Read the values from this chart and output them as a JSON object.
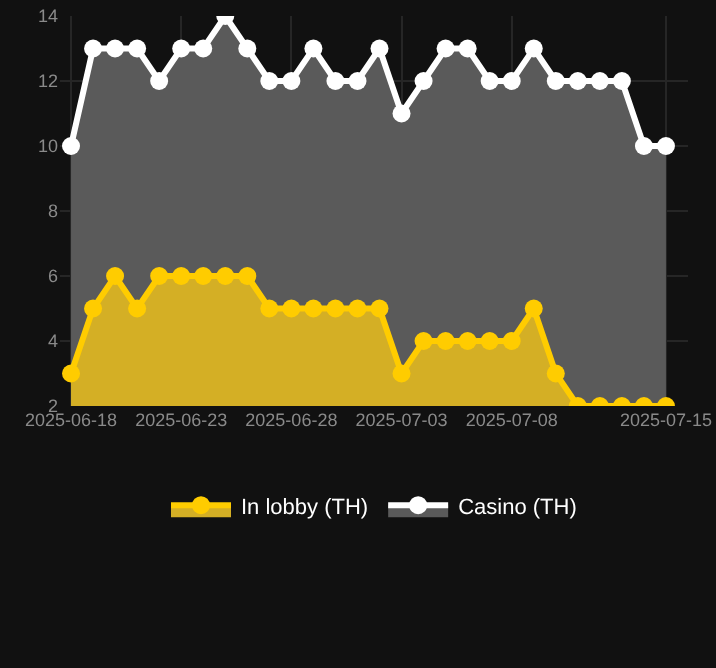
{
  "chart_data": {
    "type": "area",
    "x": [
      "2025-06-18",
      "2025-06-19",
      "2025-06-20",
      "2025-06-21",
      "2025-06-22",
      "2025-06-23",
      "2025-06-24",
      "2025-06-25",
      "2025-06-26",
      "2025-06-27",
      "2025-06-28",
      "2025-06-29",
      "2025-06-30",
      "2025-07-01",
      "2025-07-02",
      "2025-07-03",
      "2025-07-04",
      "2025-07-05",
      "2025-07-06",
      "2025-07-07",
      "2025-07-08",
      "2025-07-09",
      "2025-07-10",
      "2025-07-11",
      "2025-07-12",
      "2025-07-13",
      "2025-07-14",
      "2025-07-15"
    ],
    "series": [
      {
        "name": "Casino (TH)",
        "color": "#ffffff",
        "values": [
          10,
          13,
          13,
          13,
          12,
          13,
          13,
          14,
          13,
          12,
          12,
          13,
          12,
          12,
          13,
          11,
          12,
          13,
          13,
          12,
          12,
          13,
          12,
          12,
          12,
          12,
          10,
          10
        ]
      },
      {
        "name": "In lobby (TH)",
        "color": "#ffcc00",
        "values": [
          3,
          5,
          6,
          5,
          6,
          6,
          6,
          6,
          6,
          5,
          5,
          5,
          5,
          5,
          5,
          3,
          4,
          4,
          4,
          4,
          4,
          5,
          3,
          2,
          2,
          2,
          2,
          2
        ]
      }
    ],
    "xlim": [
      "2025-06-17T12:00",
      "2025-07-16"
    ],
    "xticks": [
      {
        "value": "2025-06-18",
        "label": "2025-06-18"
      },
      {
        "value": "2025-06-23",
        "label": "2025-06-23"
      },
      {
        "value": "2025-06-28",
        "label": "2025-06-28"
      },
      {
        "value": "2025-07-03",
        "label": "2025-07-03"
      },
      {
        "value": "2025-07-08",
        "label": "2025-07-08"
      },
      {
        "value": "2025-07-15",
        "label": "2025-07-15"
      }
    ],
    "ylim": [
      2,
      14
    ],
    "yticks": [
      2,
      4,
      6,
      8,
      10,
      12,
      14
    ],
    "grid": true,
    "legend": "bottom",
    "marker": "circle",
    "line_style": "solid"
  }
}
